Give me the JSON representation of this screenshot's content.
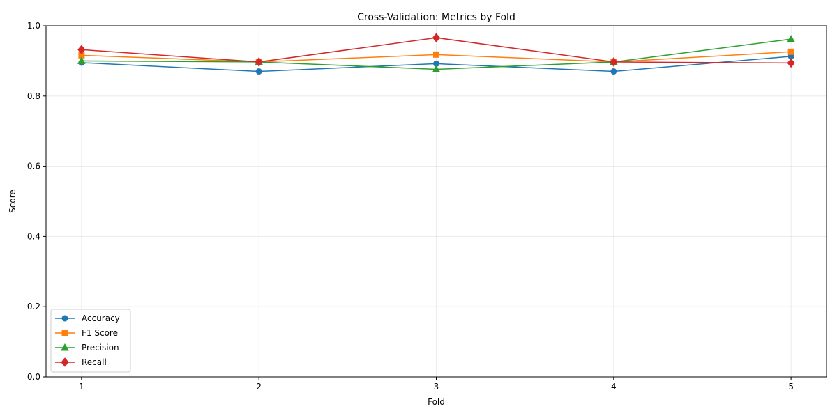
{
  "chart_data": {
    "type": "line",
    "title": "Cross-Validation: Metrics by Fold",
    "xlabel": "Fold",
    "ylabel": "Score",
    "x": [
      1,
      2,
      3,
      4,
      5
    ],
    "xticks": [
      "1",
      "2",
      "3",
      "4",
      "5"
    ],
    "ylim": [
      0.0,
      1.0
    ],
    "yticks": [
      "0.0",
      "0.2",
      "0.4",
      "0.6",
      "0.8",
      "1.0"
    ],
    "grid": true,
    "legend_position": "lower-left",
    "series": [
      {
        "name": "Accuracy",
        "color": "#1f77b4",
        "marker": "circle",
        "values": [
          0.895,
          0.87,
          0.892,
          0.87,
          0.913
        ]
      },
      {
        "name": "F1 Score",
        "color": "#ff7f0e",
        "marker": "square",
        "values": [
          0.916,
          0.897,
          0.918,
          0.897,
          0.926
        ]
      },
      {
        "name": "Precision",
        "color": "#2ca02c",
        "marker": "triangle",
        "values": [
          0.9,
          0.897,
          0.876,
          0.897,
          0.962
        ]
      },
      {
        "name": "Recall",
        "color": "#d62728",
        "marker": "diamond",
        "values": [
          0.932,
          0.897,
          0.966,
          0.897,
          0.894
        ]
      }
    ]
  }
}
